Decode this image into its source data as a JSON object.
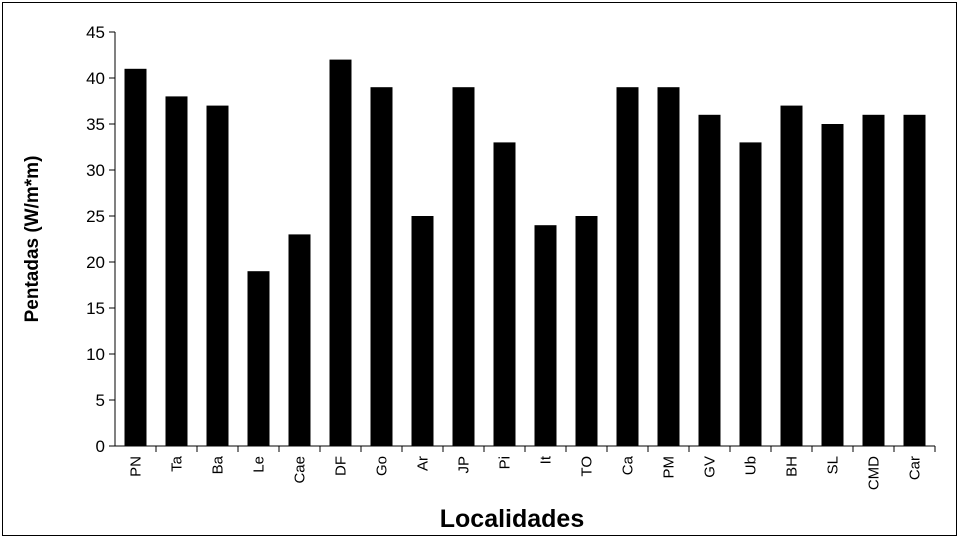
{
  "chart_data": {
    "type": "bar",
    "title": "",
    "xlabel": "Localidades",
    "ylabel": "Pentadas (W/m*m)",
    "ylim": [
      0,
      45
    ],
    "yticks": [
      0,
      5,
      10,
      15,
      20,
      25,
      30,
      35,
      40,
      45
    ],
    "grid": false,
    "legend": "none",
    "bar_color": "#000000",
    "categories": [
      "PN",
      "Ta",
      "Ba",
      "Le",
      "Cae",
      "DF",
      "Go",
      "Ar",
      "JP",
      "Pi",
      "It",
      "TO",
      "Ca",
      "PM",
      "GV",
      "Ub",
      "BH",
      "SL",
      "CMD",
      "Car"
    ],
    "values": [
      41,
      38,
      37,
      19,
      23,
      42,
      39,
      25,
      39,
      33,
      24,
      25,
      39,
      39,
      36,
      33,
      37,
      35,
      36,
      36
    ]
  }
}
